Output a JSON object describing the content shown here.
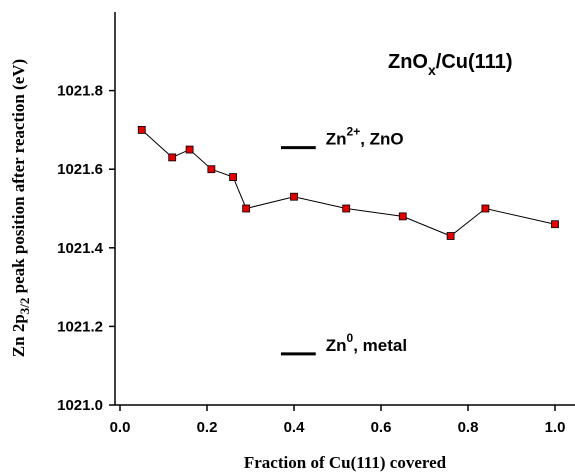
{
  "chart_data": {
    "type": "line",
    "title_main": "ZnO",
    "title_sub": "x",
    "title_rest": "/Cu(111)",
    "xlabel": "Fraction of Cu(111) covered",
    "ylabel_parts": {
      "pre": "Zn 2p",
      "sub": "3/2",
      "post": " peak position after reaction (eV)"
    },
    "xlim": [
      0.0,
      1.05
    ],
    "ylim": [
      1021.0,
      1022.0
    ],
    "x_ticks": [
      0.0,
      0.2,
      0.4,
      0.6,
      0.8,
      1.0
    ],
    "x_tick_labels": [
      "0.0",
      "0.2",
      "0.4",
      "0.6",
      "0.8",
      "1.0"
    ],
    "y_ticks": [
      1021.0,
      1021.2,
      1021.4,
      1021.6,
      1021.8
    ],
    "y_tick_labels": [
      "1021.0",
      "1021.2",
      "1021.4",
      "1021.6",
      "1021.8"
    ],
    "series": [
      {
        "x": [
          0.05,
          0.12,
          0.16,
          0.21,
          0.26,
          0.29,
          0.4,
          0.52,
          0.65,
          0.76,
          0.84,
          1.0
        ],
        "y": [
          1021.7,
          1021.63,
          1021.65,
          1021.6,
          1021.58,
          1021.5,
          1021.53,
          1021.5,
          1021.48,
          1021.43,
          1021.5,
          1021.46
        ],
        "marker": "square",
        "marker_color": "#e00000",
        "line_color": "#000000"
      }
    ],
    "reference_lines": [
      {
        "x_range": [
          0.37,
          0.45
        ],
        "y": 1021.655,
        "label_base": "Zn",
        "label_sup": "2+",
        "label_rest": ", ZnO"
      },
      {
        "x_range": [
          0.37,
          0.45
        ],
        "y": 1021.13,
        "label_base": "Zn",
        "label_sup": "0",
        "label_rest": ", metal"
      }
    ],
    "grid": false,
    "legend": "none"
  }
}
